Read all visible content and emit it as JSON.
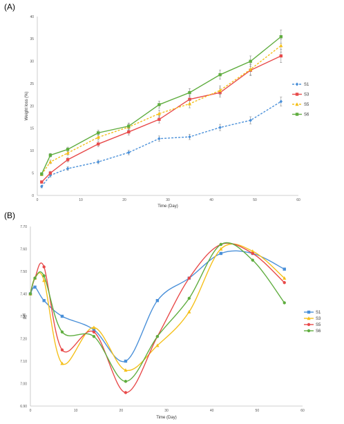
{
  "chart_data": [
    {
      "panel": "(A)",
      "type": "line",
      "xlabel": "Time (Day)",
      "ylabel": "Weight loss (%)",
      "xlim": [
        0,
        60
      ],
      "ylim": [
        0,
        40
      ],
      "x_ticks": [
        0,
        10,
        20,
        30,
        40,
        50,
        60
      ],
      "y_ticks": [
        0,
        5,
        10,
        15,
        20,
        25,
        30,
        35,
        40
      ],
      "grid": false,
      "legend_position": "right",
      "x": [
        1,
        3,
        7,
        14,
        21,
        28,
        35,
        42,
        49,
        56
      ],
      "series": [
        {
          "name": "S1",
          "color": "#4a90d9",
          "dash": true,
          "marker": "diamond",
          "values": [
            2.0,
            4.5,
            6.0,
            7.5,
            9.6,
            12.7,
            13.1,
            15.2,
            16.8,
            21.0
          ],
          "errors": [
            0.3,
            0.4,
            0.4,
            0.4,
            0.5,
            0.6,
            0.6,
            0.7,
            0.8,
            1.0
          ]
        },
        {
          "name": "S3",
          "color": "#e84a4a",
          "dash": false,
          "marker": "square",
          "values": [
            3.0,
            5.0,
            8.0,
            11.5,
            14.2,
            17.0,
            21.5,
            23.0,
            28.0,
            31.2
          ],
          "errors": [
            0.3,
            0.4,
            0.5,
            0.6,
            0.7,
            0.8,
            0.9,
            1.0,
            1.2,
            1.5
          ]
        },
        {
          "name": "S5",
          "color": "#f5c01a",
          "dash": true,
          "marker": "triangle",
          "values": [
            4.7,
            7.5,
            9.5,
            13.0,
            15.3,
            18.3,
            20.5,
            23.5,
            28.2,
            33.5
          ],
          "errors": [
            0.3,
            0.4,
            0.5,
            0.6,
            0.7,
            0.8,
            0.9,
            1.0,
            1.2,
            1.5
          ]
        },
        {
          "name": "S6",
          "color": "#5fad3f",
          "dash": false,
          "marker": "square",
          "values": [
            4.8,
            9.0,
            10.3,
            14.0,
            15.5,
            20.3,
            23.0,
            27.0,
            30.0,
            35.5
          ],
          "errors": [
            0.3,
            0.4,
            0.5,
            0.6,
            0.7,
            0.8,
            0.9,
            1.0,
            1.2,
            1.5
          ]
        }
      ]
    },
    {
      "panel": "(B)",
      "type": "line",
      "curve": "smooth",
      "xlabel": "Time (Day)",
      "ylabel": "pH",
      "xlim": [
        0,
        60
      ],
      "ylim": [
        6.9,
        7.7
      ],
      "x_ticks": [
        0,
        10,
        20,
        30,
        40,
        50,
        60
      ],
      "y_ticks": [
        "6.90",
        "7.00",
        "7.10",
        "7.20",
        "7.30",
        "7.40",
        "7.50",
        "7.60",
        "7.70"
      ],
      "grid": false,
      "legend_position": "right",
      "x": [
        0,
        1,
        3,
        7,
        14,
        21,
        28,
        35,
        42,
        49,
        56
      ],
      "series": [
        {
          "name": "S1",
          "color": "#4a90d9",
          "marker": "square",
          "values": [
            7.4,
            7.43,
            7.37,
            7.3,
            7.24,
            7.1,
            7.37,
            7.47,
            7.58,
            7.58,
            7.51
          ]
        },
        {
          "name": "S3",
          "color": "#f5c01a",
          "marker": "triangle",
          "values": [
            7.4,
            7.47,
            7.46,
            7.09,
            7.25,
            7.06,
            7.17,
            7.32,
            7.6,
            7.59,
            7.47
          ]
        },
        {
          "name": "S5",
          "color": "#e84a4a",
          "marker": "circle",
          "values": [
            7.4,
            7.47,
            7.52,
            7.15,
            7.23,
            6.96,
            7.21,
            7.47,
            7.62,
            7.58,
            7.45
          ]
        },
        {
          "name": "S6",
          "color": "#5fad3f",
          "marker": "circle",
          "values": [
            7.4,
            7.47,
            7.48,
            7.23,
            7.21,
            7.01,
            7.21,
            7.38,
            7.62,
            7.55,
            7.36
          ]
        }
      ]
    }
  ]
}
